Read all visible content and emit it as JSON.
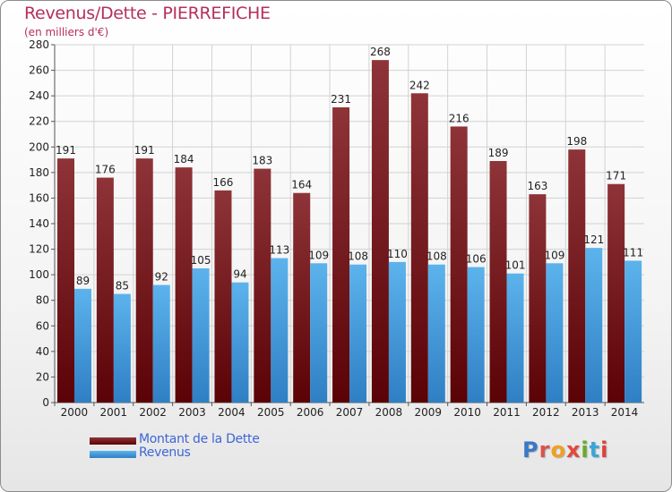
{
  "title": "Revenus/Dette - PIERREFICHE",
  "subtitle": "(en milliers d'€)",
  "logo_text": "Proxiti",
  "colors": {
    "title": "#b5305a",
    "dette_top": "#8e3438",
    "dette_bottom": "#5a0206",
    "revenus_top": "#5cb3ec",
    "revenus_bottom": "#2f7fc4",
    "legend_text": "#3d66d6"
  },
  "legend": {
    "dette_label": "Montant de la Dette",
    "revenus_label": "Revenus"
  },
  "chart_data": {
    "type": "bar",
    "title": "Revenus/Dette - PIERREFICHE",
    "subtitle": "(en milliers d'€)",
    "categories": [
      "2000",
      "2001",
      "2002",
      "2003",
      "2004",
      "2005",
      "2006",
      "2007",
      "2008",
      "2009",
      "2010",
      "2011",
      "2012",
      "2013",
      "2014"
    ],
    "series": [
      {
        "name": "Montant de la Dette",
        "values": [
          191,
          176,
          191,
          184,
          166,
          183,
          164,
          231,
          268,
          242,
          216,
          189,
          163,
          198,
          171
        ]
      },
      {
        "name": "Revenus",
        "values": [
          89,
          85,
          92,
          105,
          94,
          113,
          109,
          108,
          110,
          108,
          106,
          101,
          109,
          121,
          111
        ]
      }
    ],
    "ylim": [
      0,
      280
    ],
    "yticks": [
      0,
      20,
      40,
      60,
      80,
      100,
      120,
      140,
      160,
      180,
      200,
      220,
      240,
      260,
      280
    ],
    "grid": true,
    "legend_position": "bottom-left"
  }
}
